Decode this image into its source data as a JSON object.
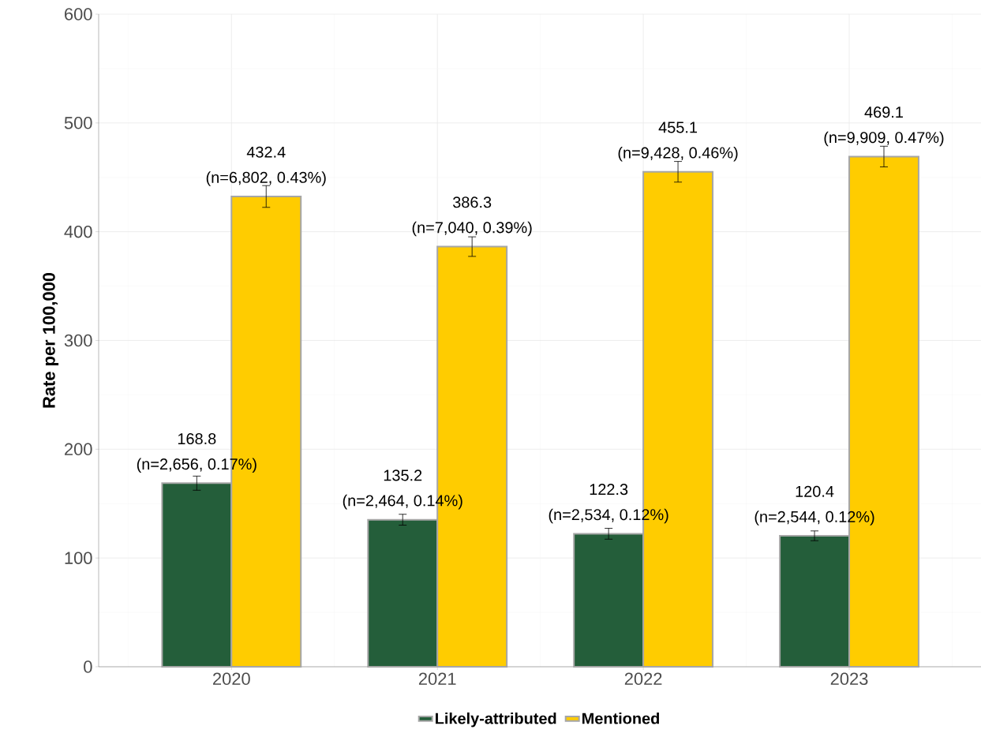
{
  "chart_data": {
    "type": "bar",
    "ylabel": "Rate per 100,000",
    "categories": [
      "2020",
      "2021",
      "2022",
      "2023"
    ],
    "series": [
      {
        "name": "Likely-attributed",
        "color": "#245e3a",
        "values": [
          168.8,
          135.2,
          122.3,
          120.4
        ],
        "errors": [
          6.5,
          5,
          5,
          4.5
        ]
      },
      {
        "name": "Mentioned",
        "color": "#ffcc00",
        "values": [
          432.4,
          386.3,
          455.1,
          469.1
        ],
        "errors": [
          10,
          9,
          9.5,
          9.5
        ]
      }
    ],
    "ylim": [
      0,
      600
    ],
    "yticks": [
      0,
      100,
      200,
      300,
      400,
      500,
      600
    ],
    "grid": true,
    "legend": "bottom",
    "data_labels": true,
    "annotations": [
      {
        "text": "(n=2,656, 0.17%)",
        "x": "2020",
        "y": 168.8
      },
      {
        "text": "(n=2,464, 0.14%)",
        "x": "2021",
        "y": 135.2
      },
      {
        "text": "(n=2,534, 0.12%)",
        "x": "2022",
        "y": 122.3
      },
      {
        "text": "(n=2,544, 0.12%)",
        "x": "2023",
        "y": 120.4
      },
      {
        "text": "(n=6,802, 0.43%)",
        "x": "2020",
        "y": 432.4
      },
      {
        "text": "(n=7,040, 0.39%)",
        "x": "2021",
        "y": 386.3
      },
      {
        "text": "(n=9,428, 0.46%)",
        "x": "2022",
        "y": 455.1
      },
      {
        "text": "(n=9,909, 0.47%)",
        "x": "2023",
        "y": 469.1
      }
    ]
  }
}
